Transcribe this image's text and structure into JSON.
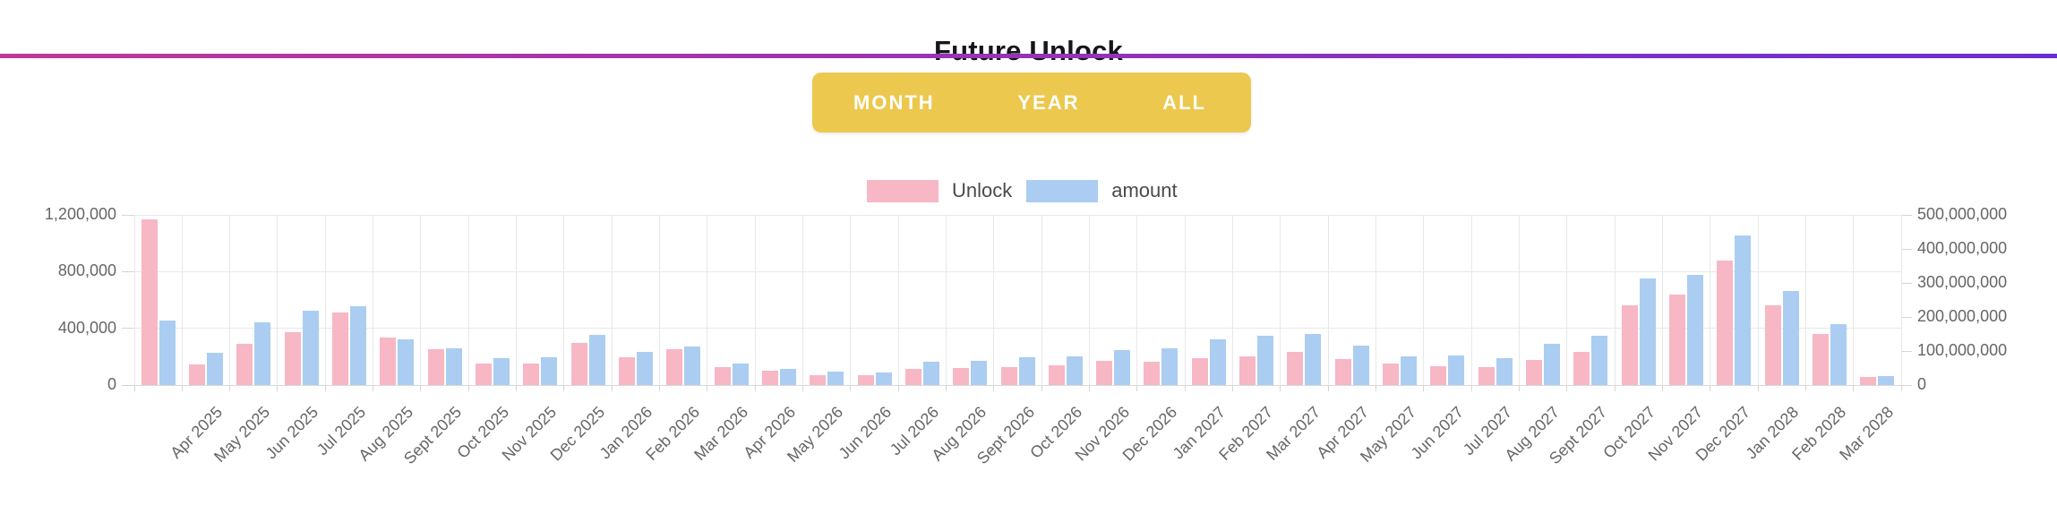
{
  "header": {
    "title": "Future Unlock"
  },
  "divider": {
    "gradient_start": "#C03897",
    "gradient_end": "#6A2ED5"
  },
  "range_selector": {
    "background": "#ECC84E",
    "text_color": "#FFFFFF",
    "options": [
      "MONTH",
      "YEAR",
      "ALL"
    ]
  },
  "legend": {
    "items": [
      {
        "label": "Unlock",
        "color": "#F7B7C5"
      },
      {
        "label": "amount",
        "color": "#ABCDF1"
      }
    ]
  },
  "chart_data": {
    "type": "bar",
    "title": "Future Unlock",
    "grid": true,
    "legend_position": "top",
    "x_label_rotation": -45,
    "categories": [
      "",
      "Apr 2025",
      "May 2025",
      "Jun 2025",
      "Jul 2025",
      "Aug 2025",
      "Sept 2025",
      "Oct 2025",
      "Nov 2025",
      "Dec 2025",
      "Jan 2026",
      "Feb 2026",
      "Mar 2026",
      "Apr 2026",
      "May 2026",
      "Jun 2026",
      "Jul 2026",
      "Aug 2026",
      "Sept 2026",
      "Oct 2026",
      "Nov 2026",
      "Dec 2026",
      "Jan 2027",
      "Feb 2027",
      "Mar 2027",
      "Apr 2027",
      "May 2027",
      "Jun 2027",
      "Jul 2027",
      "Aug 2027",
      "Sept 2027",
      "Oct 2027",
      "Nov 2027",
      "Dec 2027",
      "Jan 2028",
      "Feb 2028",
      "Mar 2028"
    ],
    "series": [
      {
        "name": "Unlock",
        "yaxis": "left",
        "color": "#F7B7C5",
        "values": [
          1170000,
          147000,
          288000,
          371000,
          512000,
          334000,
          250000,
          151000,
          151000,
          298000,
          193000,
          252000,
          124000,
          99000,
          72000,
          67000,
          116000,
          120000,
          126000,
          138000,
          168000,
          162000,
          189000,
          204000,
          235000,
          181000,
          151000,
          130000,
          124000,
          176000,
          231000,
          560000,
          638000,
          875000,
          560000,
          357000,
          57000
        ]
      },
      {
        "name": "amount",
        "yaxis": "right",
        "color": "#ABCDF1",
        "values": [
          190000000,
          94000000,
          185000000,
          219000000,
          231000000,
          133000000,
          108000000,
          78000000,
          82000000,
          148000000,
          98000000,
          114000000,
          63000000,
          48000000,
          39000000,
          37000000,
          69000000,
          70000000,
          81000000,
          85000000,
          102000000,
          107000000,
          133000000,
          146000000,
          149000000,
          115000000,
          85000000,
          88000000,
          78000000,
          122000000,
          144000000,
          312000000,
          324000000,
          439000000,
          277000000,
          178000000,
          26000000
        ]
      }
    ],
    "left_axis": {
      "max": 1200000,
      "ticks": [
        {
          "value": 1200000,
          "label": "1,200,000"
        },
        {
          "value": 800000,
          "label": "800,000"
        },
        {
          "value": 400000,
          "label": "400,000"
        },
        {
          "value": 0,
          "label": "0"
        }
      ]
    },
    "right_axis": {
      "max": 500000000,
      "ticks": [
        {
          "value": 500000000,
          "label": "500,000,000"
        },
        {
          "value": 400000000,
          "label": "400,000,000"
        },
        {
          "value": 300000000,
          "label": "300,000,000"
        },
        {
          "value": 200000000,
          "label": "200,000,000"
        },
        {
          "value": 100000000,
          "label": "100,000,000"
        },
        {
          "value": 0,
          "label": "0"
        }
      ]
    }
  }
}
